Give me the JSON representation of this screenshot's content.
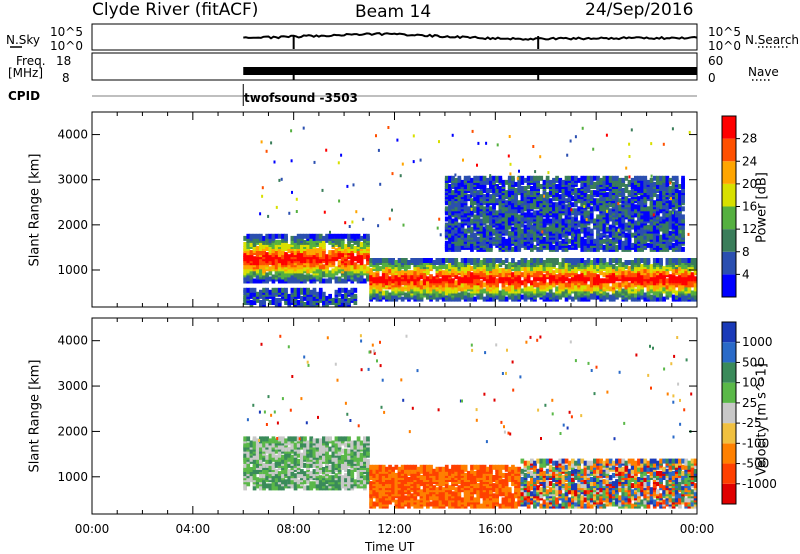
{
  "header": {
    "radar": "Clyde River (fitACF)",
    "beam": "Beam 14",
    "date": "24/Sep/2016"
  },
  "panels": {
    "nsky": {
      "label": "N.Sky",
      "ytick_top": "10^5",
      "ytick_bottom": "10^0"
    },
    "nsearch": {
      "label": "N.Search",
      "ytick_top": "10^5",
      "ytick_bottom": "10^0"
    },
    "freq": {
      "label_line1": "Freq.",
      "label_line2": "[MHz]",
      "ytick_top": "18",
      "ytick_bottom": "8"
    },
    "nave": {
      "label": "Nave",
      "ytick_top": "60",
      "ytick_bottom": "0"
    },
    "cpid": {
      "label": "CPID",
      "program": "twofsound -3503"
    }
  },
  "chart_data": [
    {
      "type": "heatmap",
      "title": "",
      "xlabel": "Time UT",
      "ylabel": "Slant Range [km]",
      "xlim_hours": [
        0,
        24
      ],
      "ylim": [
        180,
        4500
      ],
      "xticks": [
        "00:00",
        "04:00",
        "08:00",
        "12:00",
        "16:00",
        "20:00",
        "00:00"
      ],
      "yticks": [
        1000,
        2000,
        3000,
        4000
      ],
      "colorbar_label": "Power [dB]",
      "colorbar_ticks": [
        "4",
        "8",
        "12",
        "16",
        "20",
        "24",
        "28"
      ],
      "colorbar_colors": [
        "#0000ff",
        "#2b4fb0",
        "#3a7d5a",
        "#55b040",
        "#d8e000",
        "#ffa500",
        "#ff5000",
        "#ff0000"
      ],
      "echo_regions": [
        {
          "t0": 6.0,
          "t1": 11.0,
          "r0": 700,
          "r1": 1700,
          "level": "high"
        },
        {
          "t0": 11.0,
          "t1": 24.0,
          "r0": 300,
          "r1": 1200,
          "level": "high"
        },
        {
          "t0": 6.0,
          "t1": 10.5,
          "r0": 180,
          "r1": 500,
          "level": "low"
        },
        {
          "t0": 14.0,
          "t1": 23.5,
          "r0": 1400,
          "r1": 3000,
          "level": "low"
        }
      ]
    },
    {
      "type": "heatmap",
      "title": "",
      "xlabel": "Time UT",
      "ylabel": "Slant Range [km]",
      "xlim_hours": [
        0,
        24
      ],
      "ylim": [
        180,
        4500
      ],
      "xticks": [
        "00:00",
        "04:00",
        "08:00",
        "12:00",
        "16:00",
        "20:00",
        "00:00"
      ],
      "yticks": [
        1000,
        2000,
        3000,
        4000
      ],
      "colorbar_label": "Velocity [m s^-1]",
      "colorbar_ticks": [
        "1000",
        "500",
        "100",
        "25",
        "-25",
        "-100",
        "-500",
        "-1000"
      ],
      "colorbar_colors": [
        "#1a3ab8",
        "#2a6ac8",
        "#3a8a5a",
        "#5ab848",
        "#c8c8c8",
        "#f0c040",
        "#ff8000",
        "#ff4000",
        "#e00000"
      ],
      "echo_regions": [
        {
          "t0": 6.0,
          "t1": 11.0,
          "r0": 700,
          "r1": 1800,
          "level": "slow-positive"
        },
        {
          "t0": 11.0,
          "t1": 17.0,
          "r0": 300,
          "r1": 1200,
          "level": "negative"
        },
        {
          "t0": 17.0,
          "t1": 24.0,
          "r0": 300,
          "r1": 1300,
          "level": "mixed"
        }
      ]
    }
  ]
}
